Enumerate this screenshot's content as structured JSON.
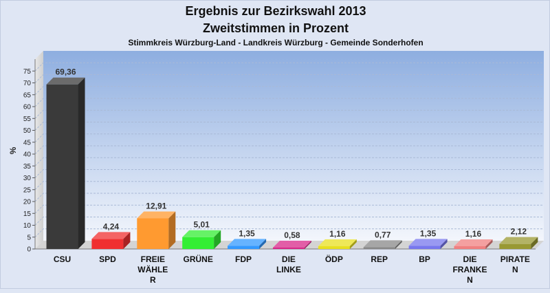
{
  "chart_data": {
    "type": "bar",
    "title": "Ergebnis zur Bezirkswahl 2013",
    "subtitle": "Zweitstimmen in Prozent",
    "subsubtitle": "Stimmkreis Würzburg-Land - Landkreis Würzburg - Gemeinde Sonderhofen",
    "ylabel": "%",
    "xlabel": "",
    "ylim": [
      0,
      80
    ],
    "yticks": [
      0,
      5,
      10,
      15,
      20,
      25,
      30,
      35,
      40,
      45,
      50,
      55,
      60,
      65,
      70,
      75
    ],
    "grid": true,
    "categories": [
      [
        "CSU"
      ],
      [
        "SPD"
      ],
      [
        "FREIE",
        "WÄHLE",
        "R"
      ],
      [
        "GRÜNE"
      ],
      [
        "FDP"
      ],
      [
        "DIE",
        "LINKE"
      ],
      [
        "ÖDP"
      ],
      [
        "REP"
      ],
      [
        "BP"
      ],
      [
        "DIE",
        "FRANKE",
        "N"
      ],
      [
        "PIRATE",
        "N"
      ]
    ],
    "values": [
      69.36,
      4.24,
      12.91,
      5.01,
      1.35,
      0.58,
      1.16,
      0.77,
      1.35,
      1.16,
      2.12
    ],
    "value_labels": [
      "69,36",
      "4,24",
      "12,91",
      "5,01",
      "1,35",
      "0,58",
      "1,16",
      "0,77",
      "1,35",
      "1,16",
      "2,12"
    ],
    "colors": [
      "#3a3a3a",
      "#f03030",
      "#ff9a30",
      "#33ee33",
      "#3399ff",
      "#d8288a",
      "#e8e020",
      "#888888",
      "#7777ee",
      "#f08080",
      "#999933"
    ]
  }
}
